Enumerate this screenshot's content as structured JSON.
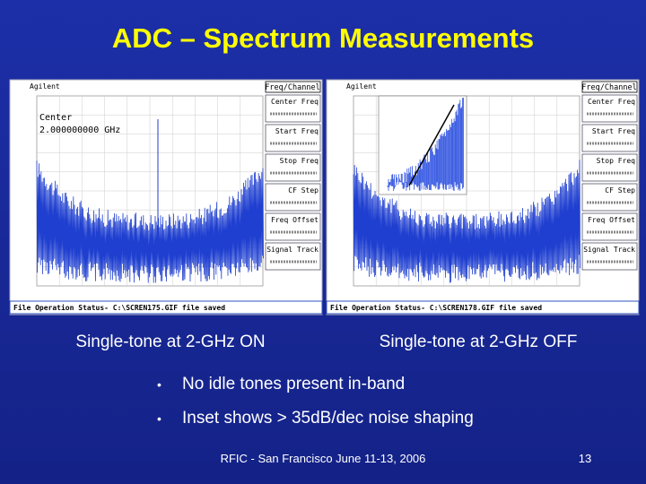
{
  "title": "ADC – Spectrum Measurements",
  "screens": [
    {
      "brand": "Agilent",
      "softkey_header": "Freq/Channel",
      "softkeys": [
        "Center Freq",
        "Start Freq",
        "Stop Freq",
        "CF Step",
        "Freq Offset",
        "Signal Track"
      ],
      "marker_label": "Center",
      "marker_value": "2.000000000 GHz",
      "status": "File Operation Status- C:\\SCREN175.GIF file saved",
      "caption": "Single-tone at 2-GHz ON"
    },
    {
      "brand": "Agilent",
      "softkey_header": "Freq/Channel",
      "softkeys": [
        "Center Freq",
        "Start Freq",
        "Stop Freq",
        "CF Step",
        "Freq Offset",
        "Signal Track"
      ],
      "status": "File Operation Status- C:\\SCREN178.GIF file saved",
      "caption": "Single-tone at 2-GHz OFF"
    }
  ],
  "bullets": [
    "No idle tones present in-band",
    "Inset shows > 35dB/dec noise shaping"
  ],
  "footer": "RFIC - San Francisco June 11-13, 2006",
  "page_number": "13"
}
